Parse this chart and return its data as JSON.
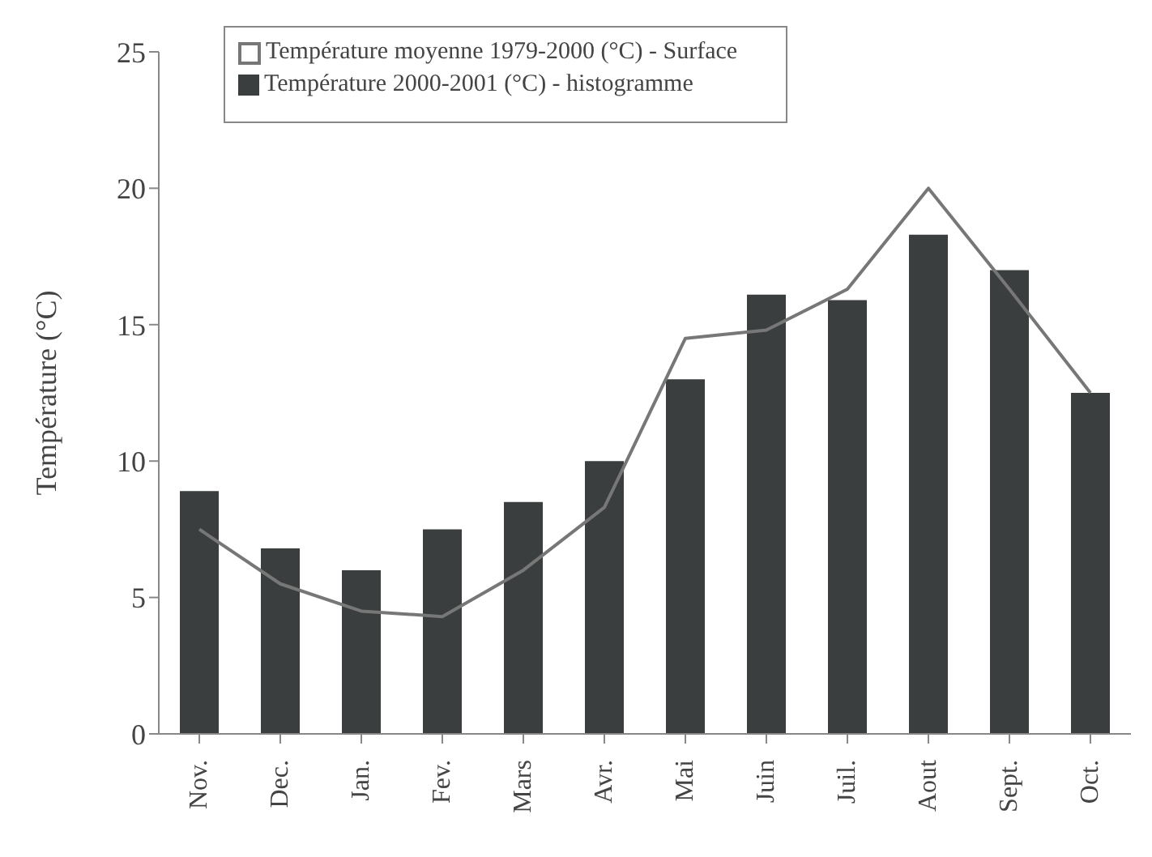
{
  "chart_data": {
    "type": "bar",
    "ylabel": "Température (°C)",
    "categories": [
      "Nov.",
      "Dec.",
      "Jan.",
      "Fev.",
      "Mars",
      "Avr.",
      "Mai",
      "Juin",
      "Juil.",
      "Aout",
      "Sept.",
      "Oct."
    ],
    "series": [
      {
        "name": "Température moyenne 1979-2000 (°C) - Surface",
        "type": "line",
        "color": "#777777",
        "values": [
          7.5,
          5.5,
          4.5,
          4.3,
          6.0,
          8.3,
          14.5,
          14.8,
          16.3,
          20.0,
          16.3,
          12.5
        ]
      },
      {
        "name": "Température  2000-2001 (°C) - histogramme",
        "color": "#3a3e3e",
        "values": [
          8.9,
          6.8,
          6.0,
          7.5,
          8.5,
          10.0,
          13.0,
          16.1,
          15.9,
          18.3,
          17.0,
          12.5
        ]
      }
    ],
    "ylim": [
      0,
      25
    ],
    "yticks": [
      0,
      5,
      10,
      15,
      20,
      25
    ],
    "grid": false,
    "legend": "top",
    "marker": "none"
  }
}
